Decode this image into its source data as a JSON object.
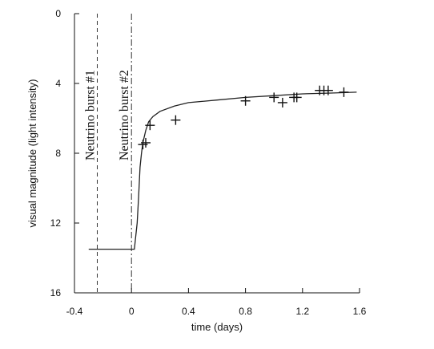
{
  "chart_data": {
    "type": "line",
    "title": "",
    "xlabel": "time (days)",
    "ylabel": "visual magnitude (light intensity)",
    "xlim": [
      -0.4,
      1.6
    ],
    "ylim": [
      0,
      16
    ],
    "y_inverted": true,
    "grid": false,
    "x_ticks": [
      -0.4,
      0,
      0.4,
      0.8,
      1.2,
      1.6
    ],
    "x_tick_labels": [
      "-0.4",
      "0",
      "0.4",
      "0.8",
      "1.2",
      "1.6"
    ],
    "y_ticks": [
      0,
      4,
      8,
      12,
      16
    ],
    "y_tick_labels": [
      "0",
      "4",
      "8",
      "12",
      "16"
    ],
    "annotations": [
      {
        "text": "Neutrino burst #1",
        "x": -0.24,
        "line_style": "dashed"
      },
      {
        "text": "Neutrino burst #2",
        "x": 0.0,
        "line_style": "dash-dot"
      }
    ],
    "series": [
      {
        "type": "line",
        "style": "solid",
        "x": [
          -0.3,
          -0.1,
          0.0,
          0.02,
          0.04,
          0.05,
          0.06,
          0.07,
          0.08,
          0.1,
          0.12,
          0.15,
          0.2,
          0.3,
          0.4,
          0.6,
          0.8,
          1.0,
          1.2,
          1.4,
          1.58
        ],
        "y": [
          13.5,
          13.5,
          13.5,
          13.5,
          12.0,
          10.5,
          8.8,
          8.0,
          7.4,
          6.7,
          6.2,
          5.9,
          5.6,
          5.3,
          5.1,
          4.95,
          4.8,
          4.7,
          4.6,
          4.55,
          4.5
        ]
      },
      {
        "type": "scatter",
        "marker": "+",
        "x": [
          0.08,
          0.1,
          0.13,
          0.31,
          0.8,
          1.0,
          1.06,
          1.14,
          1.16,
          1.32,
          1.35,
          1.38,
          1.49
        ],
        "y": [
          7.5,
          7.4,
          6.4,
          6.1,
          5.0,
          4.8,
          5.1,
          4.8,
          4.8,
          4.4,
          4.4,
          4.4,
          4.5
        ]
      }
    ]
  }
}
